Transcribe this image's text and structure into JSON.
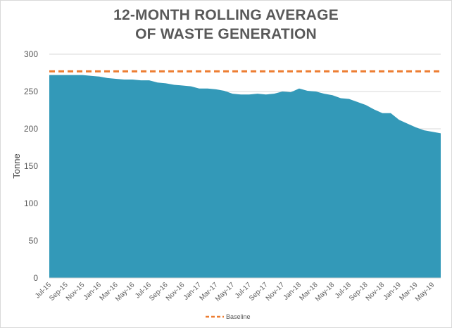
{
  "chart_data": {
    "type": "area",
    "title_line1": "12-MONTH ROLLING AVERAGE",
    "title_line2": "OF WASTE GENERATION",
    "ylabel": "Tonne",
    "xlabel": "",
    "ylim": [
      0,
      300
    ],
    "y_ticks": [
      "0",
      "50",
      "100",
      "150",
      "200",
      "250",
      "300"
    ],
    "y_tick_values": [
      0,
      50,
      100,
      150,
      200,
      250,
      300
    ],
    "grid": "horizontal",
    "legend_position": "bottom",
    "area_color": "#3399b8",
    "baseline_color": "#ed7d31",
    "months": [
      "Jul-15",
      "Aug-15",
      "Sep-15",
      "Oct-15",
      "Nov-15",
      "Dec-15",
      "Jan-16",
      "Feb-16",
      "Mar-16",
      "Apr-16",
      "May-16",
      "Jun-16",
      "Jul-16",
      "Aug-16",
      "Sep-16",
      "Oct-16",
      "Nov-16",
      "Dec-16",
      "Jan-17",
      "Feb-17",
      "Mar-17",
      "Apr-17",
      "May-17",
      "Jun-17",
      "Jul-17",
      "Aug-17",
      "Sep-17",
      "Oct-17",
      "Nov-17",
      "Dec-17",
      "Jan-18",
      "Feb-18",
      "Mar-18",
      "Apr-18",
      "May-18",
      "Jun-18",
      "Jul-18",
      "Aug-18",
      "Sep-18",
      "Oct-18",
      "Nov-18",
      "Dec-18",
      "Jan-19",
      "Feb-19",
      "Mar-19",
      "Apr-19",
      "May-19",
      "Jun-19"
    ],
    "x_tick_labels": [
      "Jul-15",
      "Sep-15",
      "Nov-15",
      "Jan-16",
      "Mar-16",
      "May-16",
      "Jul-16",
      "Sep-16",
      "Nov-16",
      "Jan-17",
      "Mar-17",
      "May-17",
      "Jul-17",
      "Sep-17",
      "Nov-17",
      "Jan-18",
      "Mar-18",
      "May-18",
      "Jul-18",
      "Sep-18",
      "Nov-18",
      "Jan-19",
      "Mar-19",
      "May-19"
    ],
    "series": [
      {
        "name": "",
        "values": [
          272,
          272,
          272,
          272,
          272,
          271,
          270,
          268,
          267,
          266,
          266,
          265,
          265,
          262,
          261,
          259,
          258,
          257,
          254,
          254,
          253,
          251,
          247,
          246,
          246,
          247,
          246,
          247,
          250,
          249,
          254,
          251,
          250,
          247,
          245,
          241,
          240,
          236,
          232,
          226,
          221,
          221,
          212,
          207,
          202,
          198,
          196,
          194
        ]
      },
      {
        "name": "Baseline",
        "value": 277
      }
    ]
  }
}
